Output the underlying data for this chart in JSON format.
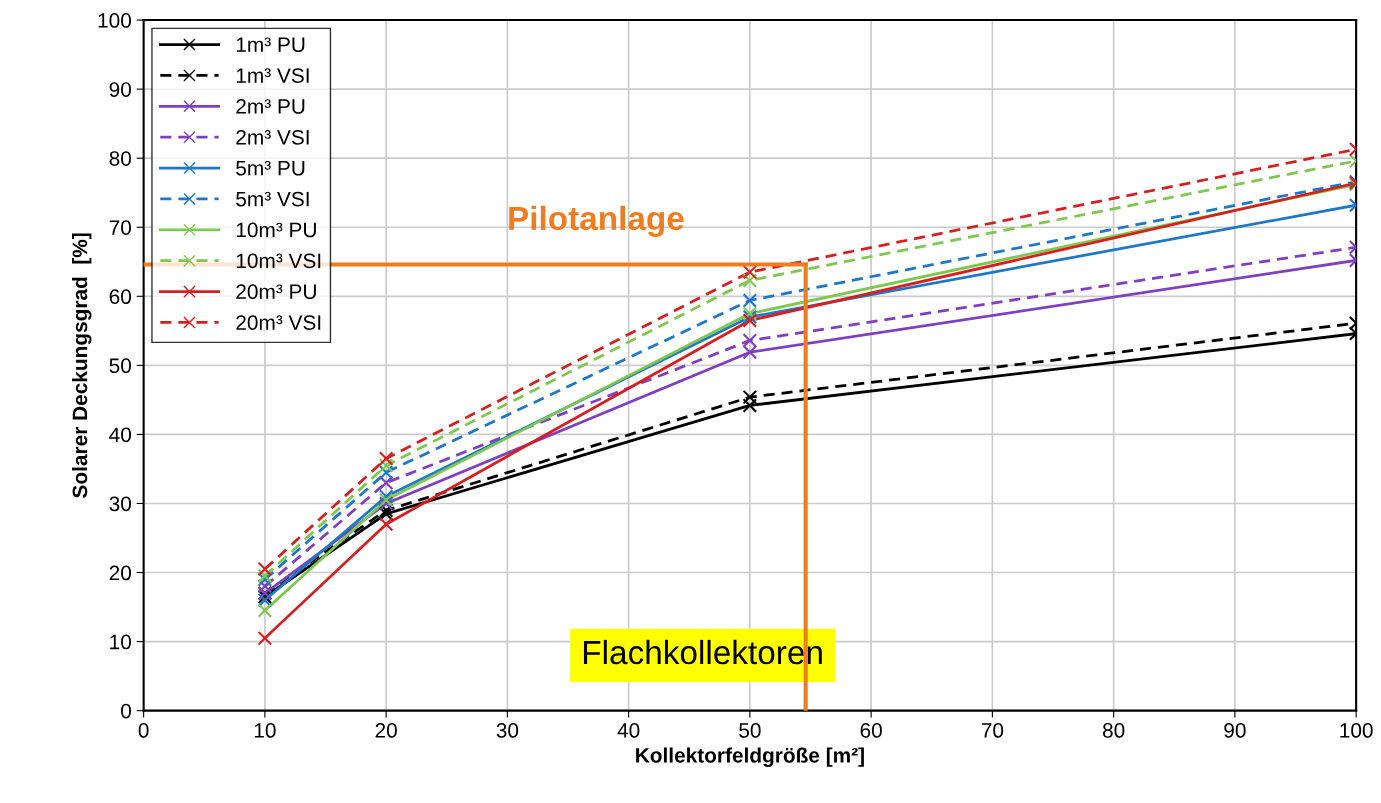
{
  "chart_data": {
    "type": "line",
    "xlabel": "Kollektorfeldgröße [m²]",
    "ylabel": "Solarer Deckungsgrad  [%]",
    "x": [
      10,
      20,
      50,
      100
    ],
    "xlim": [
      0,
      100
    ],
    "xticks": [
      0,
      10,
      20,
      30,
      40,
      50,
      60,
      70,
      80,
      90,
      100
    ],
    "ylim": [
      0,
      100
    ],
    "yticks": [
      0,
      10,
      20,
      30,
      40,
      50,
      60,
      70,
      80,
      90,
      100
    ],
    "grid": true,
    "legend": "top left",
    "marker": "cross",
    "series": [
      {
        "name": "1m³ PU",
        "color": "#000000",
        "line_style": "solid",
        "values": [
          16.5,
          28.5,
          44.2,
          54.6
        ]
      },
      {
        "name": "1m³ VSI",
        "color": "#000000",
        "line_style": "dashed",
        "values": [
          17,
          29,
          45.4,
          56.1
        ]
      },
      {
        "name": "2m³ PU",
        "color": "#7f3fbf",
        "line_style": "solid",
        "values": [
          17,
          30,
          51.9,
          65.2
        ]
      },
      {
        "name": "2m³ VSI",
        "color": "#7f3fbf",
        "line_style": "dashed",
        "values": [
          18,
          33,
          53.6,
          67.1
        ]
      },
      {
        "name": "5m³ PU",
        "color": "#1f77c8",
        "line_style": "solid",
        "values": [
          16,
          31,
          57,
          73.2
        ]
      },
      {
        "name": "5m³ VSI",
        "color": "#1f77c8",
        "line_style": "dashed",
        "values": [
          19,
          34.5,
          59.4,
          76.6
        ]
      },
      {
        "name": "10m³ PU",
        "color": "#7ec850",
        "line_style": "solid",
        "values": [
          14.5,
          30.5,
          57.5,
          76.2
        ]
      },
      {
        "name": "10m³ VSI",
        "color": "#7ec850",
        "line_style": "dashed",
        "values": [
          19.5,
          35.5,
          62.3,
          79.6
        ]
      },
      {
        "name": "20m³ PU",
        "color": "#d42020",
        "line_style": "solid",
        "values": [
          10.5,
          27,
          56.5,
          76.4
        ]
      },
      {
        "name": "20m³ VSI",
        "color": "#d42020",
        "line_style": "dashed",
        "values": [
          20.5,
          36.5,
          63.5,
          81.3
        ]
      }
    ],
    "ref_lines": [
      {
        "axis": "y",
        "value": 64.6,
        "label": "Pilotanlage",
        "color": "#f07c1e",
        "line_style": "solid"
      },
      {
        "axis": "x",
        "value": 54.6,
        "label": "Flachkollektoren",
        "color": "#f07c1e",
        "line_style": "solid"
      }
    ]
  }
}
